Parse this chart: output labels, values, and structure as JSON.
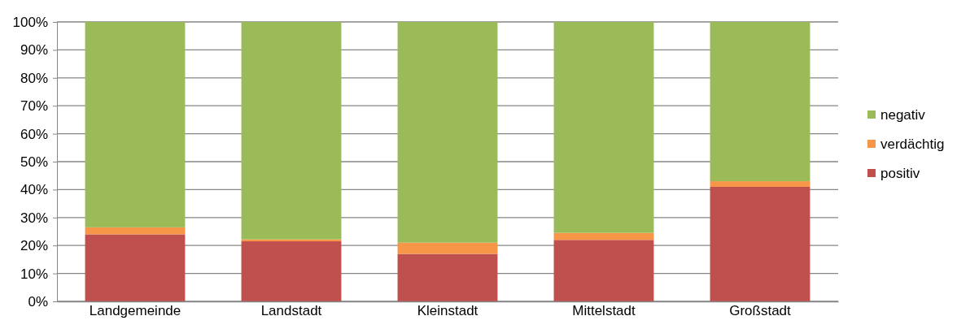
{
  "chart_data": {
    "type": "bar",
    "stacked": true,
    "categories": [
      "Landgemeinde",
      "Landstadt",
      "Kleinstadt",
      "Mittelstadt",
      "Großstadt"
    ],
    "series": [
      {
        "name": "positiv",
        "color": "#c0504d",
        "values": [
          24,
          21.5,
          17,
          22,
          41
        ]
      },
      {
        "name": "verdächtig",
        "color": "#f79646",
        "values": [
          2.5,
          0.7,
          4,
          2.5,
          2
        ]
      },
      {
        "name": "negativ",
        "color": "#9bbb59",
        "values": [
          73.5,
          77.8,
          79,
          75.5,
          57
        ]
      }
    ],
    "ylim": [
      0,
      100
    ],
    "yticks": [
      {
        "value": 0,
        "label": "0%"
      },
      {
        "value": 10,
        "label": "10%"
      },
      {
        "value": 20,
        "label": "20%"
      },
      {
        "value": 30,
        "label": "30%"
      },
      {
        "value": 40,
        "label": "40%"
      },
      {
        "value": 50,
        "label": "50%"
      },
      {
        "value": 60,
        "label": "60%"
      },
      {
        "value": 70,
        "label": "70%"
      },
      {
        "value": 80,
        "label": "80%"
      },
      {
        "value": 90,
        "label": "90%"
      },
      {
        "value": 100,
        "label": "100%"
      }
    ],
    "grid": "y",
    "legend": "right"
  }
}
